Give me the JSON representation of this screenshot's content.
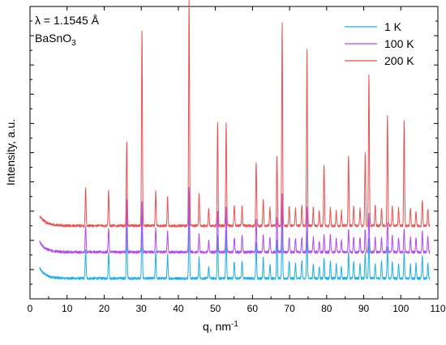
{
  "chart_data": {
    "type": "line",
    "xlabel": "q, nm",
    "xlabel_sup": "-1",
    "ylabel": "Intensity, a.u.",
    "xlim": [
      0,
      110
    ],
    "ylim": [
      0,
      100
    ],
    "x_ticks": [
      0,
      10,
      20,
      30,
      40,
      50,
      60,
      70,
      80,
      90,
      100,
      110
    ],
    "y_ticklabels_shown": false,
    "grid": false,
    "legend_position": "top-right",
    "annotations": {
      "wavelength": "λ = 1.1545 Å",
      "compound_base": "BaSnO",
      "compound_sub": "3"
    },
    "peaks_q": [
      15.0,
      21.2,
      26.1,
      30.2,
      33.9,
      37.1,
      42.9,
      45.6,
      48.2,
      50.6,
      52.9,
      55.1,
      57.2,
      61.0,
      62.9,
      64.7,
      66.6,
      68.0,
      69.9,
      71.6,
      73.3,
      74.7,
      76.4,
      78.0,
      79.3,
      81.0,
      82.6,
      84.0,
      85.9,
      87.3,
      89.0,
      90.4,
      91.4,
      93.1,
      94.8,
      96.4,
      97.7,
      99.4,
      100.9,
      102.6,
      104.1,
      105.8,
      107.3
    ],
    "series": [
      {
        "name": "1 K",
        "color": "#1eb0e6",
        "offset": 7,
        "peak_heights": [
          10,
          9,
          20,
          20,
          9,
          8,
          23,
          7,
          4,
          15,
          16,
          6,
          6,
          12,
          7,
          5,
          13,
          21,
          6,
          5,
          6,
          16,
          5,
          4,
          7,
          6,
          5,
          4,
          9,
          6,
          5,
          9,
          14,
          5,
          6,
          11,
          6,
          5,
          9,
          5,
          5,
          8,
          5
        ]
      },
      {
        "name": "100 K",
        "color": "#b347f0",
        "offset": 16,
        "peak_heights": [
          9,
          8,
          18,
          17,
          8,
          7,
          22,
          6,
          4,
          14,
          15,
          5,
          6,
          11,
          6,
          5,
          12,
          20,
          5,
          5,
          5,
          15,
          5,
          4,
          6,
          6,
          5,
          4,
          8,
          5,
          5,
          8,
          13,
          5,
          5,
          10,
          6,
          5,
          8,
          5,
          5,
          7,
          5
        ]
      },
      {
        "name": "200 K",
        "color": "#ee5050",
        "offset": 25,
        "peak_heights": [
          13,
          12,
          29,
          67,
          12,
          10,
          77,
          11,
          6,
          35,
          35,
          7,
          7,
          22,
          9,
          6,
          24,
          69,
          7,
          6,
          7,
          60,
          6,
          5,
          21,
          6,
          5,
          5,
          24,
          7,
          6,
          25,
          52,
          7,
          6,
          38,
          7,
          6,
          36,
          6,
          5,
          9,
          6
        ]
      }
    ]
  }
}
